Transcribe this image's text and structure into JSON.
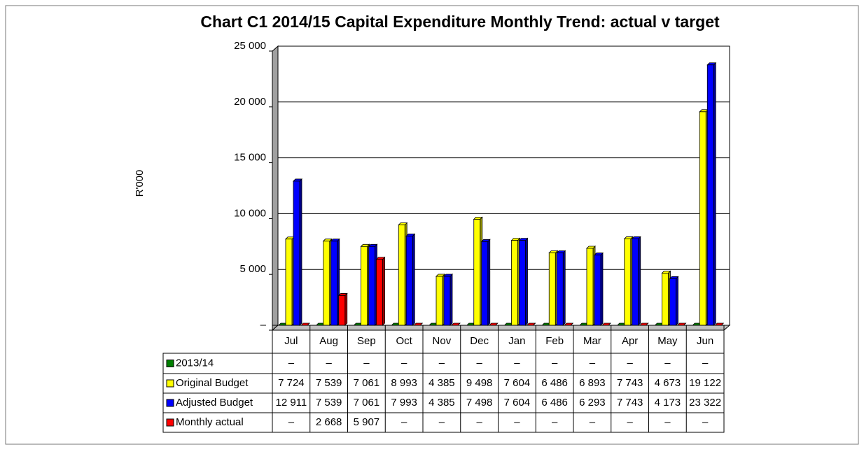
{
  "chart_data": {
    "type": "bar",
    "title": "Chart C1 2014/15 Capital Expenditure Monthly Trend: actual v target",
    "y_label": "R'000",
    "categories": [
      "Jul",
      "Aug",
      "Sep",
      "Oct",
      "Nov",
      "Dec",
      "Jan",
      "Feb",
      "Mar",
      "Apr",
      "May",
      "Jun"
    ],
    "series": [
      {
        "name": "2013/14",
        "color": "#008000",
        "values": [
          0,
          0,
          0,
          0,
          0,
          0,
          0,
          0,
          0,
          0,
          0,
          0
        ],
        "value_labels": [
          "–",
          "–",
          "–",
          "–",
          "–",
          "–",
          "–",
          "–",
          "–",
          "–",
          "–",
          "–"
        ]
      },
      {
        "name": "Original Budget",
        "color": "#ffff00",
        "values": [
          7724,
          7539,
          7061,
          8993,
          4385,
          9498,
          7604,
          6486,
          6893,
          7743,
          4673,
          19122
        ],
        "value_labels": [
          "7 724",
          "7 539",
          "7 061",
          "8 993",
          "4 385",
          "9 498",
          "7 604",
          "6 486",
          "6 893",
          "7 743",
          "4 673",
          "19 122"
        ]
      },
      {
        "name": "Adjusted Budget",
        "color": "#0000ff",
        "values": [
          12911,
          7539,
          7061,
          7993,
          4385,
          7498,
          7604,
          6486,
          6293,
          7743,
          4173,
          23322
        ],
        "value_labels": [
          "12 911",
          "7 539",
          "7 061",
          "7 993",
          "4 385",
          "7 498",
          "7 604",
          "6 486",
          "6 293",
          "7 743",
          "4 173",
          "23 322"
        ]
      },
      {
        "name": "Monthly actual",
        "color": "#ff0000",
        "values": [
          0,
          2668,
          5907,
          0,
          0,
          0,
          0,
          0,
          0,
          0,
          0,
          0
        ],
        "value_labels": [
          "–",
          "2 668",
          "5 907",
          "–",
          "–",
          "–",
          "–",
          "–",
          "–",
          "–",
          "–",
          "–"
        ]
      }
    ],
    "ylim": [
      0,
      25000
    ],
    "yticks": [
      {
        "value": 0,
        "label": "–"
      },
      {
        "value": 5000,
        "label": "5 000"
      },
      {
        "value": 10000,
        "label": "10 000"
      },
      {
        "value": 15000,
        "label": "15 000"
      },
      {
        "value": 20000,
        "label": "20 000"
      },
      {
        "value": 25000,
        "label": "25 000"
      }
    ],
    "grid": true
  }
}
